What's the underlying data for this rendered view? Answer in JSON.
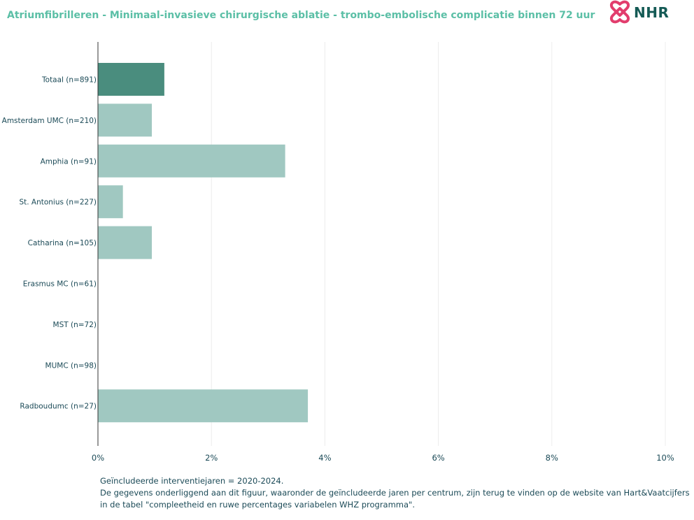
{
  "header": {
    "title": "Atriumfibrilleren - Minimaal-invasieve chirurgische ablatie - trombo-embolische complicatie binnen 72 uur",
    "logo_text": "NHR"
  },
  "colors": {
    "title": "#5bbfa6",
    "bar_total": "#4a8d7e",
    "bar_center": "#a0c8c1",
    "axis_text": "#1b4a57",
    "grid": "#ececec",
    "logo_heart": "#e23d6d",
    "logo_text": "#145a55"
  },
  "chart_data": {
    "type": "bar",
    "orientation": "horizontal",
    "categories": [
      "Totaal (n=891)",
      "Amsterdam UMC (n=210)",
      "Amphia (n=91)",
      "St. Antonius (n=227)",
      "Catharina (n=105)",
      "Erasmus MC (n=61)",
      "MST (n=72)",
      "MUMC (n=98)",
      "Radboudumc (n=27)"
    ],
    "values": [
      1.17,
      0.95,
      3.3,
      0.44,
      0.95,
      0,
      0,
      0,
      3.7
    ],
    "highlight_index": 0,
    "xlim": [
      0,
      10
    ],
    "xticks": [
      "0%",
      "2%",
      "4%",
      "6%",
      "8%",
      "10%"
    ],
    "grid": true,
    "legend": "none"
  },
  "footnote": {
    "line1": "Geïncludeerde interventiejaren = 2020-2024.",
    "line2": "De gegevens onderliggend aan dit figuur, waaronder de geïncludeerde jaren per centrum, zijn terug te vinden op de website van Hart&Vaatcijfers",
    "line3": "in de tabel \"compleetheid en ruwe percentages variabelen WHZ programma\"."
  }
}
